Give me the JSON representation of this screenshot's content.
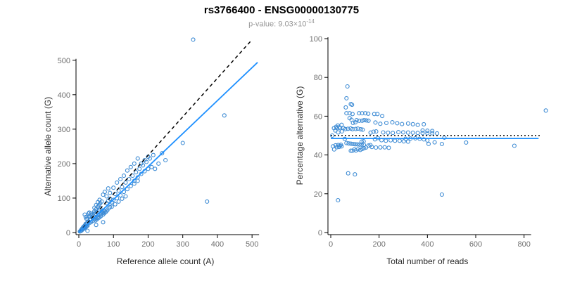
{
  "title": "rs3766400 - ENSG00000130775",
  "p_value": {
    "label": "p-value: ",
    "base": "9.03×10",
    "exponent": "-14"
  },
  "colors": {
    "point": "#3d8bd4",
    "fit_line": "#1E90FF",
    "reference_line": "#000000",
    "background": "#ffffff"
  },
  "points_ref_alt": [
    [
      3,
      3
    ],
    [
      5,
      4
    ],
    [
      6,
      7
    ],
    [
      8,
      6
    ],
    [
      9,
      10
    ],
    [
      11,
      9
    ],
    [
      12,
      14
    ],
    [
      14,
      11
    ],
    [
      15,
      16
    ],
    [
      17,
      14
    ],
    [
      18,
      21
    ],
    [
      21,
      17
    ],
    [
      22,
      24
    ],
    [
      25,
      5
    ],
    [
      10,
      12
    ],
    [
      13,
      16
    ],
    [
      16,
      19
    ],
    [
      19,
      15
    ],
    [
      23,
      19
    ],
    [
      24,
      28
    ],
    [
      17,
      52
    ],
    [
      20,
      45
    ],
    [
      22,
      40
    ],
    [
      28,
      55
    ],
    [
      30,
      58
    ],
    [
      20,
      25
    ],
    [
      25,
      20
    ],
    [
      28,
      32
    ],
    [
      30,
      28
    ],
    [
      33,
      38
    ],
    [
      35,
      30
    ],
    [
      38,
      44
    ],
    [
      40,
      34
    ],
    [
      42,
      48
    ],
    [
      45,
      38
    ],
    [
      48,
      55
    ],
    [
      50,
      42
    ],
    [
      52,
      60
    ],
    [
      55,
      46
    ],
    [
      58,
      66
    ],
    [
      60,
      50
    ],
    [
      62,
      70
    ],
    [
      65,
      54
    ],
    [
      68,
      60
    ],
    [
      70,
      58
    ],
    [
      72,
      64
    ],
    [
      75,
      62
    ],
    [
      40,
      52
    ],
    [
      36,
      50
    ],
    [
      32,
      46
    ],
    [
      44,
      58
    ],
    [
      48,
      35
    ],
    [
      52,
      38
    ],
    [
      56,
      42
    ],
    [
      60,
      44
    ],
    [
      64,
      48
    ],
    [
      55,
      75
    ],
    [
      50,
      68
    ],
    [
      45,
      62
    ],
    [
      35,
      55
    ],
    [
      30,
      48
    ],
    [
      25,
      40
    ],
    [
      58,
      80
    ],
    [
      62,
      85
    ],
    [
      66,
      90
    ],
    [
      70,
      52
    ],
    [
      74,
      56
    ],
    [
      78,
      60
    ],
    [
      82,
      64
    ],
    [
      86,
      70
    ],
    [
      90,
      74
    ],
    [
      60,
      95
    ],
    [
      55,
      88
    ],
    [
      50,
      80
    ],
    [
      45,
      72
    ],
    [
      50,
      22
    ],
    [
      70,
      30
    ],
    [
      80,
      85
    ],
    [
      85,
      92
    ],
    [
      90,
      98
    ],
    [
      95,
      88
    ],
    [
      100,
      95
    ],
    [
      105,
      112
    ],
    [
      110,
      100
    ],
    [
      115,
      122
    ],
    [
      120,
      108
    ],
    [
      125,
      132
    ],
    [
      130,
      118
    ],
    [
      135,
      145
    ],
    [
      140,
      126
    ],
    [
      145,
      155
    ],
    [
      150,
      135
    ],
    [
      155,
      165
    ],
    [
      160,
      142
    ],
    [
      165,
      175
    ],
    [
      170,
      150
    ],
    [
      100,
      130
    ],
    [
      110,
      145
    ],
    [
      120,
      155
    ],
    [
      130,
      165
    ],
    [
      90,
      115
    ],
    [
      80,
      105
    ],
    [
      95,
      75
    ],
    [
      105,
      82
    ],
    [
      115,
      90
    ],
    [
      125,
      98
    ],
    [
      135,
      105
    ],
    [
      70,
      110
    ],
    [
      75,
      118
    ],
    [
      85,
      128
    ],
    [
      175,
      185
    ],
    [
      180,
      170
    ],
    [
      185,
      195
    ],
    [
      190,
      178
    ],
    [
      195,
      205
    ],
    [
      200,
      185
    ],
    [
      205,
      215
    ],
    [
      210,
      190
    ],
    [
      150,
      190
    ],
    [
      160,
      200
    ],
    [
      170,
      215
    ],
    [
      140,
      180
    ],
    [
      190,
      210
    ],
    [
      200,
      220
    ],
    [
      180,
      200
    ],
    [
      160,
      150
    ],
    [
      170,
      160
    ],
    [
      220,
      185
    ],
    [
      230,
      200
    ],
    [
      215,
      225
    ],
    [
      330,
      560
    ],
    [
      420,
      340
    ],
    [
      370,
      90
    ],
    [
      300,
      260
    ],
    [
      250,
      210
    ],
    [
      240,
      230
    ]
  ],
  "chart_data": [
    {
      "type": "scatter",
      "name": "allele-counts-scatter",
      "title": "",
      "xlabel": "Reference allele count (A)",
      "ylabel": "Alternative allele count (G)",
      "xlim": [
        0,
        520
      ],
      "ylim": [
        0,
        575
      ],
      "xticks": [
        0,
        100,
        200,
        300,
        400,
        500
      ],
      "yticks": [
        0,
        100,
        200,
        300,
        400,
        500
      ],
      "grid": false,
      "points_transform": "ref_vs_alt",
      "lines": [
        {
          "name": "expected-line",
          "type": "ab",
          "slope": 1.12,
          "intercept": 0,
          "x_range": [
            0,
            500
          ],
          "style": "dashed",
          "color": "#000000",
          "width": 1.5
        },
        {
          "name": "fit-line",
          "type": "ab",
          "slope": 0.957,
          "intercept": 0,
          "x_range": [
            0,
            516
          ],
          "style": "solid",
          "color": "#1E90FF",
          "width": 1.8
        }
      ]
    },
    {
      "type": "scatter",
      "name": "percentage-vs-reads-scatter",
      "title": "",
      "xlabel": "Total number of reads",
      "ylabel": "Percentage alternative (G)",
      "xlim": [
        0,
        900
      ],
      "ylim": [
        0,
        100
      ],
      "xticks": [
        0,
        200,
        400,
        600,
        800
      ],
      "yticks": [
        0,
        20,
        40,
        60,
        80,
        100
      ],
      "grid": false,
      "points_transform": "total_vs_percentage",
      "lines": [
        {
          "name": "expected-line",
          "type": "h",
          "y": 50,
          "x_range": [
            0,
            870
          ],
          "style": "dotted",
          "color": "#000000",
          "width": 1.4
        },
        {
          "name": "fit-line",
          "type": "h",
          "y": 48.5,
          "x_range": [
            0,
            860
          ],
          "style": "solid",
          "color": "#1E90FF",
          "width": 1.8
        }
      ]
    }
  ]
}
